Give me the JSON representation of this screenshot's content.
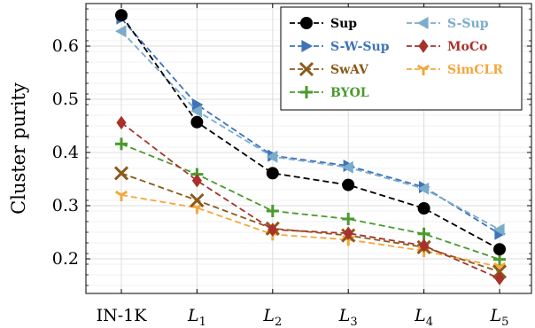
{
  "chart_data": {
    "type": "line",
    "xlabel": "",
    "ylabel": "Cluster purity",
    "categories": [
      {
        "base": "IN-1K",
        "sub": ""
      },
      {
        "base": "L",
        "sub": "1"
      },
      {
        "base": "L",
        "sub": "2"
      },
      {
        "base": "L",
        "sub": "3"
      },
      {
        "base": "L",
        "sub": "4"
      },
      {
        "base": "L",
        "sub": "5"
      }
    ],
    "ylim": [
      0.135,
      0.68
    ],
    "yticks": [
      "0.2",
      "0.3",
      "0.4",
      "0.5",
      "0.6"
    ],
    "grid": true,
    "legend_position": "top-right",
    "series": [
      {
        "name": "Sup",
        "color": "#000000",
        "marker": "circle",
        "values": [
          0.658,
          0.457,
          0.361,
          0.339,
          0.295,
          0.218
        ]
      },
      {
        "name": "S-Sup",
        "color": "#7aaccc",
        "marker": "triangle-left",
        "values": [
          0.628,
          0.478,
          0.392,
          0.372,
          0.332,
          0.255
        ]
      },
      {
        "name": "S-W-Sup",
        "color": "#3f73b8",
        "marker": "triangle-right",
        "values": [
          0.652,
          0.49,
          0.394,
          0.375,
          0.335,
          0.247
        ]
      },
      {
        "name": "MoCo",
        "color": "#a8322b",
        "marker": "diamond",
        "values": [
          0.456,
          0.347,
          0.255,
          0.248,
          0.225,
          0.163
        ]
      },
      {
        "name": "SwAV",
        "color": "#8b5a1a",
        "marker": "x",
        "values": [
          0.361,
          0.31,
          0.257,
          0.244,
          0.222,
          0.176
        ]
      },
      {
        "name": "SimCLR",
        "color": "#f4a73c",
        "marker": "tri-down",
        "values": [
          0.32,
          0.296,
          0.246,
          0.236,
          0.215,
          0.185
        ]
      },
      {
        "name": "BYOL",
        "color": "#4a9a2d",
        "marker": "plus",
        "values": [
          0.416,
          0.359,
          0.29,
          0.275,
          0.247,
          0.199
        ]
      }
    ]
  }
}
